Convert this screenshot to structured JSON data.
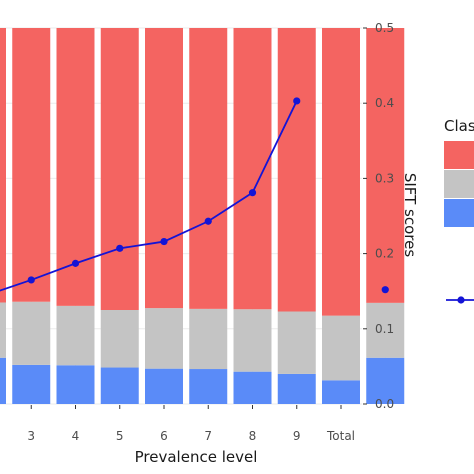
{
  "chart_data": {
    "type": "bar",
    "subtype": "stacked-bar-with-line-overlay",
    "visible_categories": [
      "3",
      "4",
      "5",
      "6",
      "7",
      "8",
      "9",
      "Total"
    ],
    "unlabeled_leading_columns": 1,
    "stack_series": [
      {
        "name": "",
        "color": "#5a8bf8",
        "values": [
          0.123,
          0.104,
          0.103,
          0.097,
          0.094,
          0.093,
          0.086,
          0.08,
          0.063,
          0.123
        ]
      },
      {
        "name": "",
        "color": "#c4c4c4",
        "values": [
          0.147,
          0.168,
          0.158,
          0.153,
          0.161,
          0.16,
          0.166,
          0.166,
          0.172,
          0.146
        ]
      },
      {
        "name": "",
        "color": "#f46461",
        "values": [
          0.73,
          0.728,
          0.739,
          0.75,
          0.745,
          0.747,
          0.748,
          0.754,
          0.765,
          0.731
        ]
      }
    ],
    "stack_scale_max": 1,
    "line_series": {
      "color": "#1414d6",
      "values": [
        0.145,
        0.165,
        0.187,
        0.207,
        0.216,
        0.243,
        0.281,
        0.403
      ],
      "total_point": 0.152
    },
    "right_axis": {
      "label": "SIFT scores",
      "ylim": [
        0,
        0.5
      ],
      "ticks": [
        "0.0",
        "0.1",
        "0.2",
        "0.3",
        "0.4",
        "0.5"
      ]
    },
    "xlabel": "Prevalence level",
    "legend": {
      "title": "Clas",
      "placement": "right",
      "swatch_colors": [
        "#f46461",
        "#c4c4c4",
        "#5a8bf8"
      ],
      "line_key_color": "#1414d6"
    },
    "grid": true,
    "background": "#ffffff"
  }
}
